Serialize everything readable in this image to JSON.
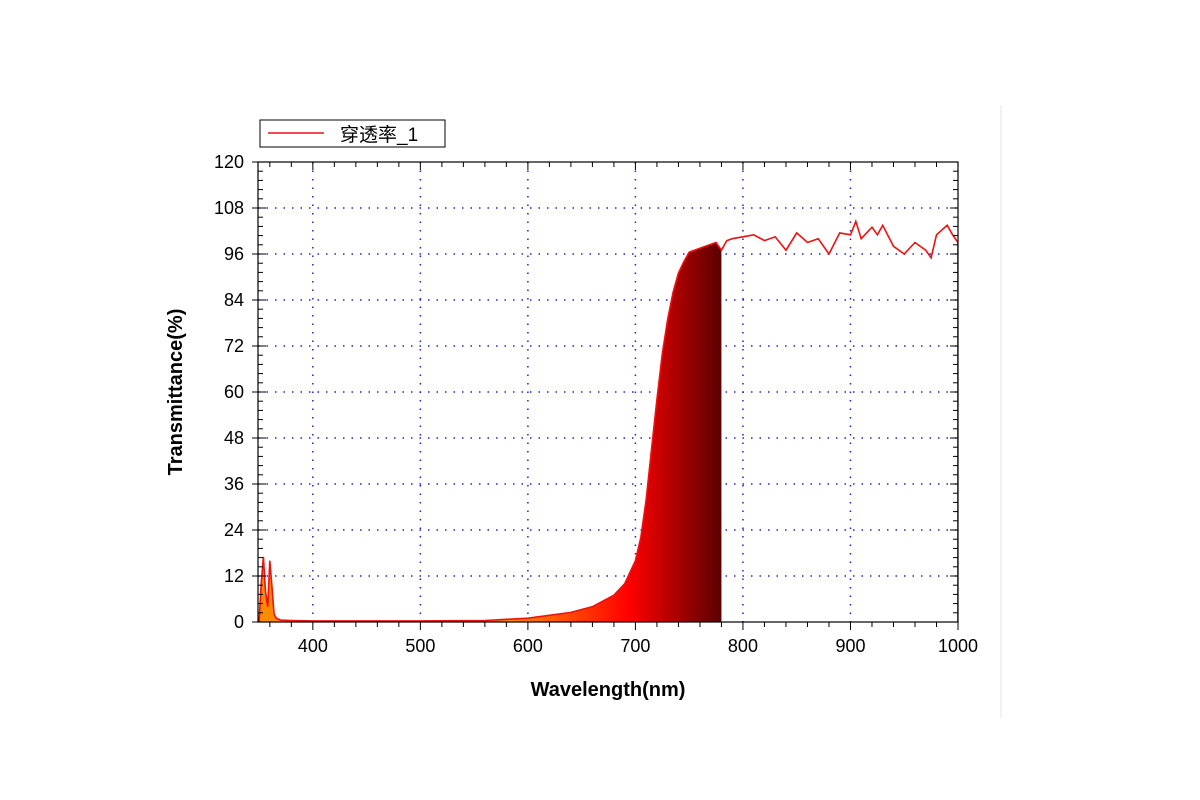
{
  "chart_data": {
    "type": "area",
    "title": "",
    "xlabel": "Wavelength(nm)",
    "ylabel": "Transmittance(%)",
    "xlim": [
      349,
      1000
    ],
    "ylim": [
      0,
      120
    ],
    "xticks": [
      400,
      500,
      600,
      700,
      800,
      900,
      1000
    ],
    "yticks": [
      0,
      12,
      24,
      36,
      48,
      60,
      72,
      84,
      96,
      108,
      120
    ],
    "grid": true,
    "legend_position": "top-left",
    "fill_range_nm": [
      350,
      780
    ],
    "colors": {
      "line": "#ee1111",
      "grid": "#2222cc",
      "fill_start": "#ff8c00",
      "fill_mid": "#ff0000",
      "fill_end": "#5a0000"
    },
    "series": [
      {
        "name": "穿透率_1",
        "x": [
          350,
          352,
          354,
          356,
          358,
          360,
          362,
          364,
          366,
          370,
          380,
          400,
          450,
          500,
          560,
          600,
          640,
          660,
          680,
          690,
          700,
          705,
          710,
          715,
          720,
          725,
          730,
          735,
          740,
          745,
          750,
          760,
          770,
          775,
          780,
          785,
          790,
          800,
          810,
          820,
          830,
          840,
          850,
          860,
          870,
          880,
          890,
          900,
          905,
          910,
          920,
          925,
          930,
          940,
          950,
          960,
          970,
          975,
          980,
          990,
          995,
          1000
        ],
        "y": [
          0,
          10,
          17,
          8,
          4,
          16,
          9,
          2,
          1,
          0.5,
          0.4,
          0.3,
          0.3,
          0.3,
          0.4,
          1,
          2.5,
          4,
          7,
          10,
          16,
          22,
          32,
          45,
          58,
          70,
          79,
          86,
          91,
          94,
          96.5,
          97.5,
          98.5,
          99,
          97,
          99.5,
          100,
          100.5,
          101,
          99.5,
          100.5,
          97,
          101.5,
          99,
          100,
          96,
          101.5,
          101,
          104.5,
          100,
          103,
          101,
          103.5,
          98,
          96,
          99,
          97,
          95,
          101,
          103.5,
          101,
          99
        ]
      }
    ]
  }
}
